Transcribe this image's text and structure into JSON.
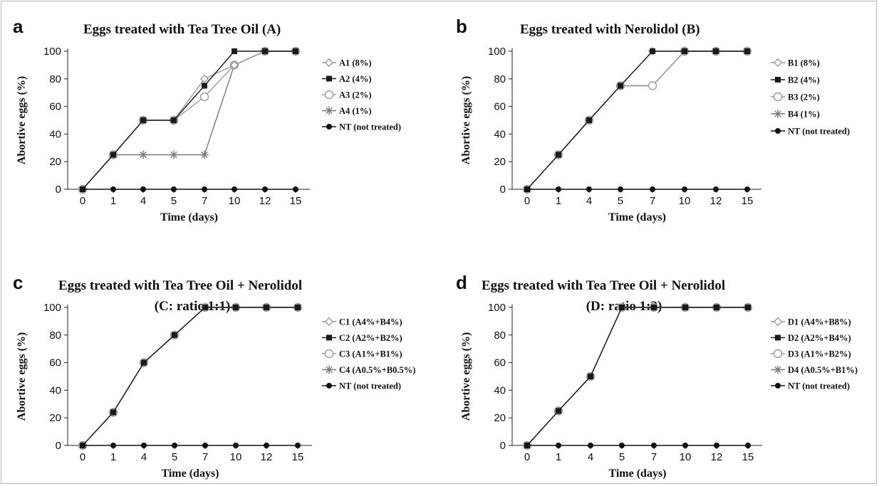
{
  "chart_data": [
    {
      "panel_label": "a",
      "type": "line",
      "title": "Eggs treated with Tea Tree Oil (A)",
      "subtitle": "",
      "xlabel": "Time (days)",
      "ylabel": "Abortive eggs (%)",
      "x_scale": "categorical",
      "categories": [
        "0",
        "1",
        "4",
        "5",
        "7",
        "10",
        "12",
        "15"
      ],
      "ylim": [
        0,
        100
      ],
      "yticks": [
        "0",
        "20",
        "40",
        "60",
        "80",
        "100"
      ],
      "grid": false,
      "legend_position": "right",
      "series": [
        {
          "name": "A1 (8%)",
          "marker": "diamond-open",
          "color": "#9a9a9a",
          "values": [
            0,
            25,
            50,
            50,
            80,
            90,
            100,
            100
          ]
        },
        {
          "name": "A2 (4%)",
          "marker": "square-filled",
          "color": "#1a1a1a",
          "values": [
            0,
            25,
            50,
            50,
            75,
            100,
            100,
            100
          ]
        },
        {
          "name": "A3 (2%)",
          "marker": "circle-open",
          "color": "#9a9a9a",
          "values": [
            0,
            25,
            50,
            50,
            67,
            90,
            100,
            100
          ]
        },
        {
          "name": "A4 (1%)",
          "marker": "star",
          "color": "#7a7a7a",
          "values": [
            0,
            25,
            25,
            25,
            25,
            90,
            100,
            100
          ]
        },
        {
          "name": "NT (not treated)",
          "marker": "circle-filled",
          "color": "#111111",
          "values": [
            0,
            0,
            0,
            0,
            0,
            0,
            0,
            0
          ]
        }
      ]
    },
    {
      "panel_label": "b",
      "type": "line",
      "title": "Eggs treated with Nerolidol (B)",
      "subtitle": "",
      "xlabel": "Time (days)",
      "ylabel": "Abortive eggs (%)",
      "x_scale": "categorical",
      "categories": [
        "0",
        "1",
        "4",
        "5",
        "7",
        "10",
        "12",
        "15"
      ],
      "ylim": [
        0,
        100
      ],
      "yticks": [
        "0",
        "20",
        "40",
        "60",
        "80",
        "100"
      ],
      "grid": false,
      "legend_position": "right",
      "series": [
        {
          "name": "B1 (8%)",
          "marker": "diamond-open",
          "color": "#9a9a9a",
          "values": [
            0,
            25,
            50,
            75,
            100,
            100,
            100,
            100
          ]
        },
        {
          "name": "B2 (4%)",
          "marker": "square-filled",
          "color": "#1a1a1a",
          "values": [
            0,
            25,
            50,
            75,
            100,
            100,
            100,
            100
          ]
        },
        {
          "name": "B3 (2%)",
          "marker": "circle-open",
          "color": "#9a9a9a",
          "values": [
            0,
            25,
            50,
            75,
            75,
            100,
            100,
            100
          ]
        },
        {
          "name": "B4 (1%)",
          "marker": "star",
          "color": "#7a7a7a",
          "values": [
            0,
            25,
            50,
            75,
            75,
            100,
            100,
            100
          ]
        },
        {
          "name": "NT (not treated)",
          "marker": "circle-filled",
          "color": "#111111",
          "values": [
            0,
            0,
            0,
            0,
            0,
            0,
            0,
            0
          ]
        }
      ]
    },
    {
      "panel_label": "c",
      "type": "line",
      "title": "Eggs treated with Tea Tree Oil + Nerolidol",
      "subtitle": "(C: ratio 1:1)",
      "xlabel": "Time (days)",
      "ylabel": "Abortive eggs (%)",
      "x_scale": "categorical",
      "categories": [
        "0",
        "1",
        "4",
        "5",
        "7",
        "10",
        "12",
        "15"
      ],
      "ylim": [
        0,
        100
      ],
      "yticks": [
        "0",
        "20",
        "40",
        "60",
        "80",
        "100"
      ],
      "grid": false,
      "legend_position": "right",
      "series": [
        {
          "name": "C1 (A4%+B4%)",
          "marker": "diamond-open",
          "color": "#9a9a9a",
          "values": [
            0,
            24,
            60,
            80,
            100,
            100,
            100,
            100
          ]
        },
        {
          "name": "C2 (A2%+B2%)",
          "marker": "square-filled",
          "color": "#1a1a1a",
          "values": [
            0,
            24,
            60,
            80,
            100,
            100,
            100,
            100
          ]
        },
        {
          "name": "C3 (A1%+B1%)",
          "marker": "circle-open",
          "color": "#9a9a9a",
          "values": [
            0,
            24,
            60,
            80,
            100,
            100,
            100,
            100
          ]
        },
        {
          "name": "C4 (A0.5%+B0.5%)",
          "marker": "star",
          "color": "#7a7a7a",
          "values": [
            0,
            24,
            60,
            80,
            100,
            100,
            100,
            100
          ]
        },
        {
          "name": "NT (not treated)",
          "marker": "circle-filled",
          "color": "#111111",
          "values": [
            0,
            0,
            0,
            0,
            0,
            0,
            0,
            0
          ]
        }
      ]
    },
    {
      "panel_label": "d",
      "type": "line",
      "title": "Eggs treated with Tea Tree Oil + Nerolidol",
      "subtitle": "(D: ratio 1:2)",
      "xlabel": "Time (days)",
      "ylabel": "Abortive eggs (%)",
      "x_scale": "categorical",
      "categories": [
        "0",
        "1",
        "4",
        "5",
        "7",
        "10",
        "12",
        "15"
      ],
      "ylim": [
        0,
        100
      ],
      "yticks": [
        "0",
        "20",
        "40",
        "60",
        "80",
        "100"
      ],
      "grid": false,
      "legend_position": "right",
      "series": [
        {
          "name": "D1 (A4%+B8%)",
          "marker": "diamond-open",
          "color": "#9a9a9a",
          "values": [
            0,
            25,
            50,
            100,
            100,
            100,
            100,
            100
          ]
        },
        {
          "name": "D2 (A2%+B4%)",
          "marker": "square-filled",
          "color": "#1a1a1a",
          "values": [
            0,
            25,
            50,
            100,
            100,
            100,
            100,
            100
          ]
        },
        {
          "name": "D3 (A1%+B2%)",
          "marker": "circle-open",
          "color": "#9a9a9a",
          "values": [
            0,
            25,
            50,
            100,
            100,
            100,
            100,
            100
          ]
        },
        {
          "name": "D4 (A0.5%+B1%)",
          "marker": "star",
          "color": "#7a7a7a",
          "values": [
            0,
            25,
            50,
            100,
            100,
            100,
            100,
            100
          ]
        },
        {
          "name": "NT (not treated)",
          "marker": "circle-filled",
          "color": "#111111",
          "values": [
            0,
            0,
            0,
            0,
            0,
            0,
            0,
            0
          ]
        }
      ]
    }
  ]
}
